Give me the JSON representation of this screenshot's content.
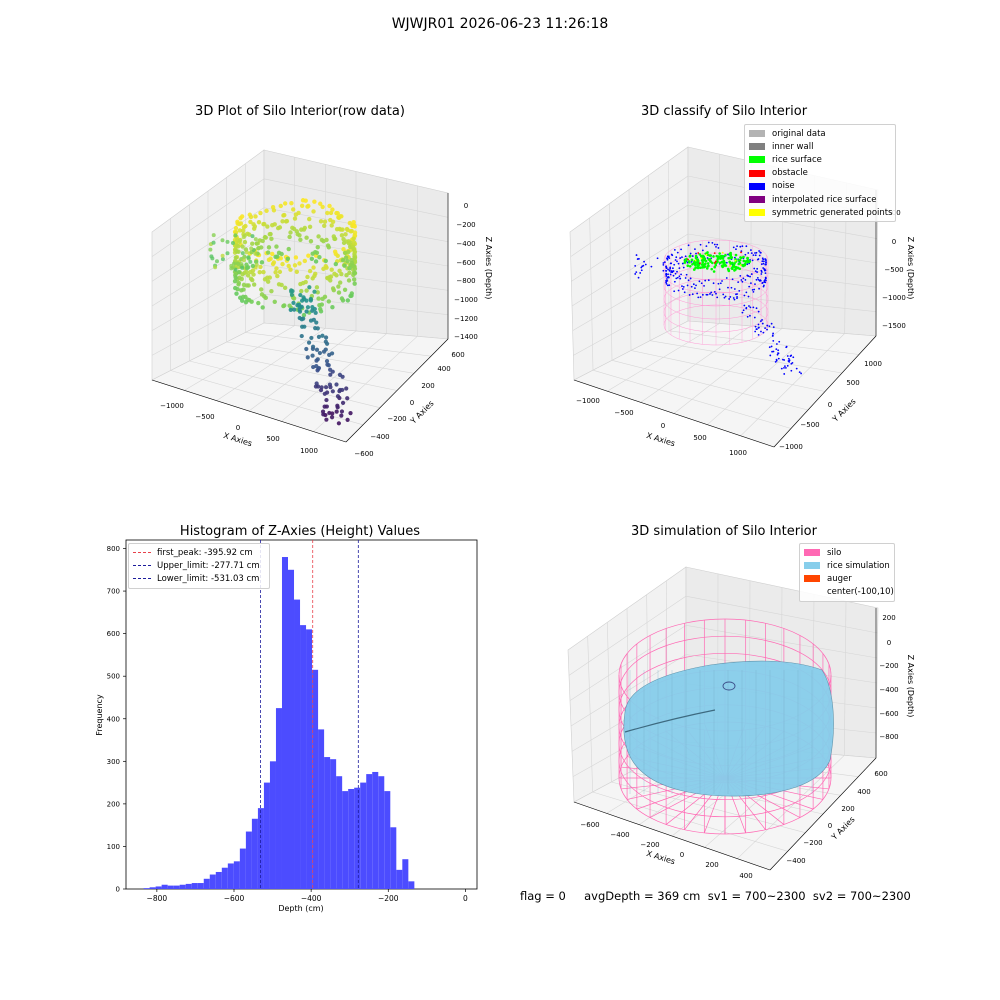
{
  "figure": {
    "suptitle": "WJWJR01 2026-06-23 11:26:18",
    "status_line": "flag = 0     avgDepth = 369 cm  sv1 = 700~2300  sv2 = 700~2300"
  },
  "colors": {
    "hist_bar": "#4c4cff",
    "first_peak": "#e8414a",
    "limit_line": "#1c1c9c",
    "grid": "#d8d8d8",
    "pane": "#f2f2f2"
  },
  "panels": {
    "raw": {
      "title": "3D Plot of Silo Interior(row data)",
      "xlabel": "X Axies",
      "ylabel": "Y Axies",
      "zlabel": "Z Axies (Depth)",
      "xticks": [
        "−1000",
        "−500",
        "0",
        "500",
        "1000"
      ],
      "yticks": [
        "600",
        "400",
        "200",
        "0",
        "−200",
        "−400",
        "−600"
      ],
      "zticks": [
        "0",
        "−200",
        "−400",
        "−600",
        "−800",
        "−1000",
        "−1200",
        "−1400"
      ],
      "colormap": "viridis"
    },
    "classify": {
      "title": "3D classify of Silo Interior",
      "xlabel": "X Axies",
      "ylabel": "Y Axies",
      "zlabel": "Z Axies (Depth)",
      "xticks": [
        "−1000",
        "−500",
        "0",
        "500",
        "1000"
      ],
      "yticks": [
        "1000",
        "500",
        "0",
        "−500",
        "−1000"
      ],
      "zticks": [
        "500",
        "0",
        "−500",
        "−1000",
        "−1500"
      ],
      "legend": [
        {
          "label": "original data",
          "color": "#b3b3b3"
        },
        {
          "label": "inner wall",
          "color": "#808080"
        },
        {
          "label": "rice surface",
          "color": "#00ff00"
        },
        {
          "label": "obstacle",
          "color": "#ff0000"
        },
        {
          "label": "noise",
          "color": "#0000ff"
        },
        {
          "label": "interpolated rice surface",
          "color": "#800080"
        },
        {
          "label": "symmetric generated points",
          "color": "#ffff00"
        }
      ]
    },
    "simulation": {
      "title": "3D simulation of Silo Interior",
      "xlabel": "X Axies",
      "ylabel": "Y Axies",
      "zlabel": "Z Axies (Depth)",
      "xticks": [
        "−600",
        "−400",
        "−200",
        "0",
        "200",
        "400"
      ],
      "yticks": [
        "600",
        "400",
        "200",
        "0",
        "−200",
        "−400"
      ],
      "zticks": [
        "200",
        "0",
        "−200",
        "−400",
        "−600",
        "−800"
      ],
      "legend": [
        {
          "label": "silo",
          "color": "#ff69b4"
        },
        {
          "label": "rice simulation",
          "color": "#87ceeb"
        },
        {
          "label": "auger",
          "color": "#ff4500"
        },
        {
          "label": "center(-100,10)",
          "color": ""
        }
      ]
    }
  },
  "chart_data": [
    {
      "type": "scatter",
      "title": "3D Plot of Silo Interior(row data)",
      "xlabel": "X Axies",
      "ylabel": "Y Axies",
      "zlabel": "Z Axies (Depth)",
      "xlim": [
        -1200,
        1200
      ],
      "ylim": [
        -600,
        600
      ],
      "zlim": [
        -1500,
        0
      ]
    },
    {
      "type": "scatter",
      "title": "3D classify of Silo Interior",
      "xlabel": "X Axies",
      "ylabel": "Y Axies",
      "zlabel": "Z Axies (Depth)",
      "xlim": [
        -1200,
        1200
      ],
      "ylim": [
        -1200,
        1200
      ],
      "zlim": [
        -1700,
        500
      ],
      "series": [
        {
          "name": "original data"
        },
        {
          "name": "inner wall"
        },
        {
          "name": "rice surface"
        },
        {
          "name": "obstacle"
        },
        {
          "name": "noise"
        },
        {
          "name": "interpolated rice surface"
        },
        {
          "name": "symmetric generated points"
        }
      ]
    },
    {
      "type": "bar",
      "title": "Histogram of Z-Axies (Height) Values",
      "xlabel": "Depth (cm)",
      "ylabel": "Frequency",
      "xlim": [
        -880,
        30
      ],
      "ylim": [
        0,
        820
      ],
      "xticks": [
        -800,
        -600,
        -400,
        -200,
        0
      ],
      "yticks": [
        0,
        100,
        200,
        300,
        400,
        500,
        600,
        700,
        800
      ],
      "bin_start": -850,
      "bin_width": 15.6,
      "values": [
        0,
        2,
        4,
        6,
        10,
        8,
        8,
        10,
        12,
        14,
        14,
        24,
        34,
        40,
        50,
        60,
        65,
        95,
        135,
        165,
        190,
        250,
        300,
        425,
        780,
        750,
        680,
        620,
        610,
        515,
        375,
        310,
        305,
        265,
        230,
        235,
        238,
        250,
        270,
        275,
        265,
        230,
        145,
        45,
        70,
        18
      ],
      "vlines": [
        {
          "label": "first_peak: -395.92 cm",
          "x": -395.92,
          "color": "#e8414a"
        },
        {
          "label": "Upper_limit: -277.71 cm",
          "x": -277.71,
          "color": "#1c1c9c"
        },
        {
          "label": "Lower_limit: -531.03 cm",
          "x": -531.03,
          "color": "#1c1c9c"
        }
      ]
    },
    {
      "type": "area",
      "title": "3D simulation of Silo Interior",
      "xlabel": "X Axies",
      "ylabel": "Y Axies",
      "zlabel": "Z Axies (Depth)",
      "xlim": [
        -700,
        500
      ],
      "ylim": [
        -500,
        650
      ],
      "zlim": [
        -850,
        350
      ],
      "series": [
        {
          "name": "silo"
        },
        {
          "name": "rice simulation"
        },
        {
          "name": "auger"
        },
        {
          "name": "center(-100,10)"
        }
      ]
    }
  ]
}
